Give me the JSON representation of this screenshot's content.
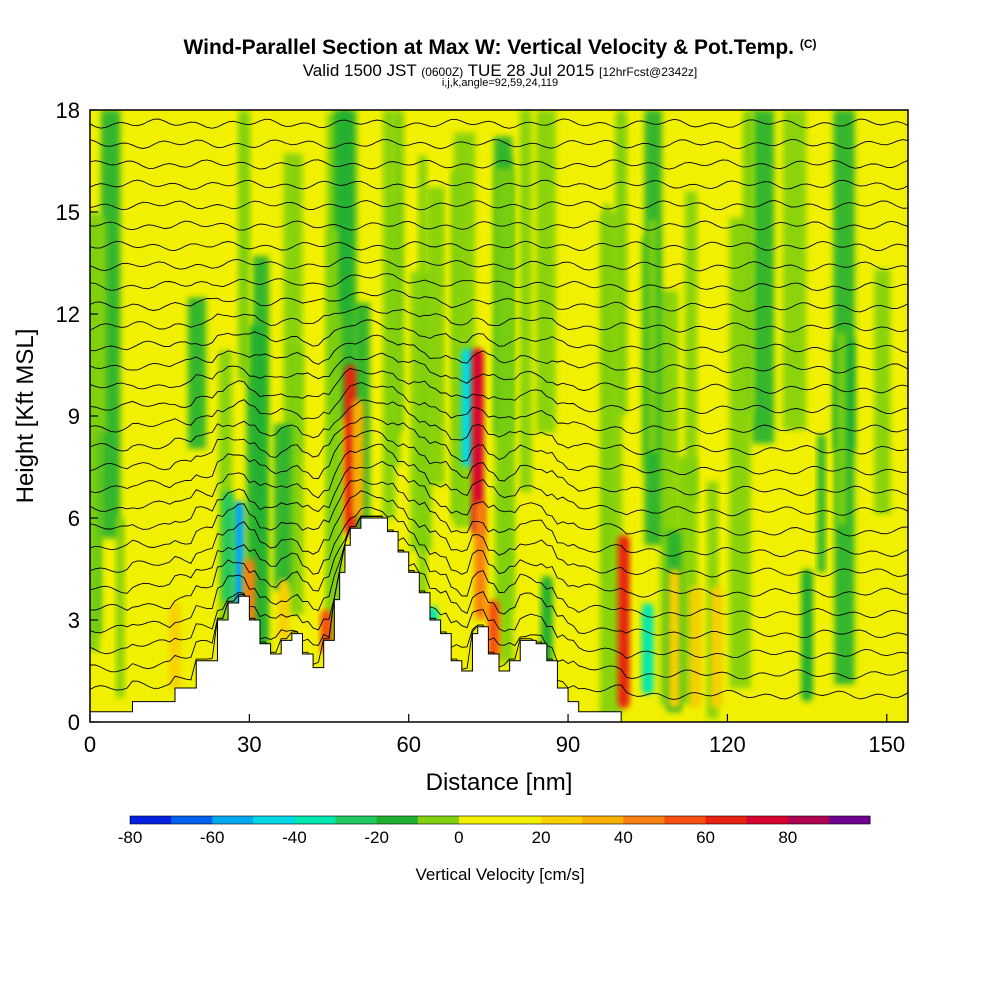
{
  "header": {
    "title": "Wind-Parallel Section at Max W: Vertical Velocity & Pot.Temp.",
    "copyright": "(C)",
    "valid_main": "Valid 1500 JST",
    "valid_utc": "(0600Z)",
    "valid_date": "TUE 28 Jul 2015",
    "forecast": "[12hrFcst@2342z]",
    "indices": "i,j,k,angle=92,59,24,119"
  },
  "chart_data": {
    "type": "heatmap",
    "xlabel": "Distance [nm]",
    "ylabel": "Height [Kft MSL]",
    "xlim": [
      0,
      154
    ],
    "ylim": [
      0,
      18
    ],
    "x_ticks": [
      "0",
      "30",
      "60",
      "90",
      "120",
      "150"
    ],
    "y_ticks": [
      "0",
      "3",
      "6",
      "9",
      "12",
      "15",
      "18"
    ],
    "x_tick_values": [
      0,
      30,
      60,
      90,
      120,
      150
    ],
    "y_tick_values": [
      0,
      3,
      6,
      9,
      12,
      15,
      18
    ],
    "background_value_cms": 0,
    "terrain_profile": [
      [
        0,
        0.3
      ],
      [
        8,
        0.6
      ],
      [
        16,
        1.0
      ],
      [
        20,
        1.8
      ],
      [
        24,
        3.0
      ],
      [
        26,
        3.5
      ],
      [
        28,
        3.7
      ],
      [
        30,
        3.0
      ],
      [
        32,
        2.3
      ],
      [
        34,
        2.0
      ],
      [
        36,
        2.4
      ],
      [
        38,
        2.6
      ],
      [
        40,
        2.0
      ],
      [
        42,
        1.6
      ],
      [
        44,
        2.4
      ],
      [
        46,
        3.6
      ],
      [
        47,
        4.4
      ],
      [
        48,
        5.2
      ],
      [
        49,
        5.7
      ],
      [
        51,
        6.0
      ],
      [
        54,
        6.0
      ],
      [
        56,
        5.6
      ],
      [
        58,
        5.0
      ],
      [
        60,
        4.4
      ],
      [
        62,
        3.8
      ],
      [
        64,
        3.0
      ],
      [
        66,
        2.6
      ],
      [
        68,
        1.8
      ],
      [
        70,
        1.5
      ],
      [
        72,
        2.6
      ],
      [
        73,
        2.8
      ],
      [
        75,
        2.0
      ],
      [
        77,
        1.5
      ],
      [
        79,
        1.8
      ],
      [
        81,
        2.4
      ],
      [
        84,
        2.3
      ],
      [
        86,
        1.8
      ],
      [
        88,
        1.0
      ],
      [
        90,
        0.6
      ],
      [
        92,
        0.3
      ],
      [
        100,
        0.3
      ]
    ],
    "velocity_cells": [
      {
        "x": 28,
        "z_bottom": 3.2,
        "z_top": 6.5,
        "w": -60
      },
      {
        "x": 26,
        "z_bottom": 3.5,
        "z_top": 6.8,
        "w": -30
      },
      {
        "x": 30,
        "z_bottom": 1.6,
        "z_top": 4.8,
        "w": 40
      },
      {
        "x": 49,
        "z_bottom": 5.5,
        "z_top": 10.5,
        "w": 60
      },
      {
        "x": 50.5,
        "z_bottom": 6.0,
        "z_top": 9.5,
        "w": 30
      },
      {
        "x": 44.5,
        "z_bottom": 2.0,
        "z_top": 3.3,
        "w": 50
      },
      {
        "x": 71,
        "z_bottom": 7.5,
        "z_top": 11.0,
        "w": -50
      },
      {
        "x": 73,
        "z_bottom": 5.5,
        "z_top": 11.0,
        "w": 70
      },
      {
        "x": 73.5,
        "z_bottom": 3.0,
        "z_top": 6.5,
        "w": 40
      },
      {
        "x": 76,
        "z_bottom": 1.8,
        "z_top": 3.6,
        "w": 50
      },
      {
        "x": 64.5,
        "z_bottom": 2.3,
        "z_top": 3.4,
        "w": -40
      },
      {
        "x": 100.5,
        "z_bottom": 0.4,
        "z_top": 5.5,
        "w": 60
      },
      {
        "x": 105,
        "z_bottom": 0.8,
        "z_top": 3.5,
        "w": -40
      },
      {
        "x": 110,
        "z_bottom": 0.4,
        "z_top": 4.5,
        "w": 20
      },
      {
        "x": 114,
        "z_bottom": 0.4,
        "z_top": 4.0,
        "w": 20
      },
      {
        "x": 118,
        "z_bottom": 0.4,
        "z_top": 4.0,
        "w": 20
      },
      {
        "x": 86,
        "z_bottom": 1.0,
        "z_top": 4.3,
        "w": -20
      },
      {
        "x": 135,
        "z_bottom": 0.6,
        "z_top": 4.5,
        "w": -20
      },
      {
        "x": 16,
        "z_bottom": 1.0,
        "z_top": 3.5,
        "w": 20
      },
      {
        "x": 36.5,
        "z_bottom": 2.4,
        "z_top": 4.2,
        "w": 20
      },
      {
        "x": 58,
        "z_bottom": 8.5,
        "z_top": 18.0,
        "w": -10
      },
      {
        "x": 48,
        "z_bottom": 12.0,
        "z_top": 18.0,
        "w": -20
      },
      {
        "x": 29,
        "z_bottom": 10.0,
        "z_top": 18.0,
        "w": -10
      },
      {
        "x": 100,
        "z_bottom": 9.0,
        "z_top": 18.0,
        "w": -10
      },
      {
        "x": 124,
        "z_bottom": 9.0,
        "z_top": 18.0,
        "w": -10
      }
    ],
    "isentrope_count": 30
  },
  "colorbar": {
    "label": "Vertical Velocity [cm/s]",
    "tick_labels": [
      "-80",
      "-60",
      "-40",
      "-20",
      "0",
      "20",
      "40",
      "60",
      "80"
    ],
    "tick_values": [
      -80,
      -60,
      -40,
      -20,
      0,
      20,
      40,
      60,
      80
    ],
    "bins": [
      -80,
      -70,
      -60,
      -50,
      -40,
      -30,
      -20,
      -10,
      0,
      10,
      20,
      30,
      40,
      50,
      60,
      70,
      80,
      90
    ],
    "colors": [
      "#0020e0",
      "#0060f0",
      "#00a8f0",
      "#00d8e8",
      "#00e8b0",
      "#20c860",
      "#20b030",
      "#80d010",
      "#f0f000",
      "#f0f000",
      "#f8d000",
      "#f8b000",
      "#f88010",
      "#f85010",
      "#e82010",
      "#d80030",
      "#b00050",
      "#700090"
    ]
  }
}
